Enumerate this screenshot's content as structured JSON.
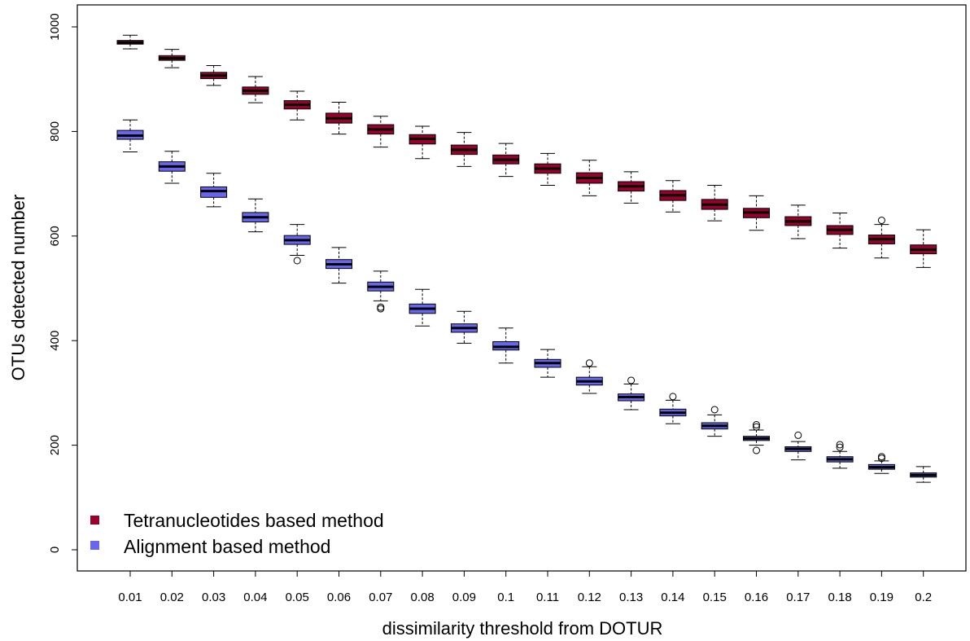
{
  "chart_data": {
    "type": "boxplot",
    "xlabel": "dissimilarity threshold from DOTUR",
    "ylabel": "OTUs detected number",
    "ylim": [
      0,
      1000
    ],
    "yticks": [
      0,
      200,
      400,
      600,
      800,
      1000
    ],
    "categories": [
      "0.01",
      "0.02",
      "0.03",
      "0.04",
      "0.05",
      "0.06",
      "0.07",
      "0.08",
      "0.09",
      "0.1",
      "0.11",
      "0.12",
      "0.13",
      "0.14",
      "0.15",
      "0.16",
      "0.17",
      "0.18",
      "0.19",
      "0.2"
    ],
    "legend_position": "bottom-left",
    "grid": false,
    "series": [
      {
        "name": "Tetranucleotides based method",
        "color": "#99002e",
        "boxes": [
          {
            "min": 958,
            "q1": 967,
            "median": 970,
            "q3": 974,
            "max": 984,
            "outliers": []
          },
          {
            "min": 922,
            "q1": 936,
            "median": 940,
            "q3": 945,
            "max": 957,
            "outliers": []
          },
          {
            "min": 888,
            "q1": 901,
            "median": 907,
            "q3": 913,
            "max": 926,
            "outliers": []
          },
          {
            "min": 855,
            "q1": 871,
            "median": 878,
            "q3": 885,
            "max": 905,
            "outliers": []
          },
          {
            "min": 822,
            "q1": 843,
            "median": 851,
            "q3": 859,
            "max": 877,
            "outliers": []
          },
          {
            "min": 795,
            "q1": 816,
            "median": 825,
            "q3": 835,
            "max": 856,
            "outliers": []
          },
          {
            "min": 770,
            "q1": 795,
            "median": 804,
            "q3": 813,
            "max": 829,
            "outliers": []
          },
          {
            "min": 748,
            "q1": 776,
            "median": 786,
            "q3": 794,
            "max": 810,
            "outliers": []
          },
          {
            "min": 733,
            "q1": 756,
            "median": 765,
            "q3": 774,
            "max": 798,
            "outliers": []
          },
          {
            "min": 714,
            "q1": 738,
            "median": 746,
            "q3": 755,
            "max": 777,
            "outliers": []
          },
          {
            "min": 697,
            "q1": 720,
            "median": 729,
            "q3": 738,
            "max": 758,
            "outliers": []
          },
          {
            "min": 677,
            "q1": 701,
            "median": 711,
            "q3": 721,
            "max": 745,
            "outliers": []
          },
          {
            "min": 663,
            "q1": 686,
            "median": 695,
            "q3": 704,
            "max": 723,
            "outliers": []
          },
          {
            "min": 646,
            "q1": 668,
            "median": 678,
            "q3": 687,
            "max": 706,
            "outliers": []
          },
          {
            "min": 629,
            "q1": 651,
            "median": 660,
            "q3": 670,
            "max": 697,
            "outliers": []
          },
          {
            "min": 611,
            "q1": 635,
            "median": 645,
            "q3": 653,
            "max": 677,
            "outliers": []
          },
          {
            "min": 595,
            "q1": 620,
            "median": 628,
            "q3": 637,
            "max": 659,
            "outliers": []
          },
          {
            "min": 577,
            "q1": 603,
            "median": 612,
            "q3": 620,
            "max": 644,
            "outliers": []
          },
          {
            "min": 558,
            "q1": 585,
            "median": 594,
            "q3": 602,
            "max": 622,
            "outliers": [
              630
            ]
          },
          {
            "min": 540,
            "q1": 566,
            "median": 574,
            "q3": 583,
            "max": 612,
            "outliers": []
          }
        ]
      },
      {
        "name": "Alignment based method",
        "color": "#6666ee",
        "boxes": [
          {
            "min": 761,
            "q1": 785,
            "median": 792,
            "q3": 802,
            "max": 822,
            "outliers": []
          },
          {
            "min": 701,
            "q1": 724,
            "median": 733,
            "q3": 742,
            "max": 762,
            "outliers": []
          },
          {
            "min": 656,
            "q1": 674,
            "median": 686,
            "q3": 694,
            "max": 720,
            "outliers": []
          },
          {
            "min": 608,
            "q1": 627,
            "median": 636,
            "q3": 645,
            "max": 671,
            "outliers": []
          },
          {
            "min": 563,
            "q1": 584,
            "median": 592,
            "q3": 601,
            "max": 622,
            "outliers": [
              553
            ]
          },
          {
            "min": 510,
            "q1": 538,
            "median": 546,
            "q3": 555,
            "max": 578,
            "outliers": []
          },
          {
            "min": 476,
            "q1": 495,
            "median": 503,
            "q3": 512,
            "max": 533,
            "outliers": [
              461,
              464
            ]
          },
          {
            "min": 428,
            "q1": 452,
            "median": 461,
            "q3": 470,
            "max": 498,
            "outliers": []
          },
          {
            "min": 395,
            "q1": 416,
            "median": 424,
            "q3": 432,
            "max": 456,
            "outliers": []
          },
          {
            "min": 357,
            "q1": 382,
            "median": 388,
            "q3": 398,
            "max": 424,
            "outliers": []
          },
          {
            "min": 330,
            "q1": 349,
            "median": 357,
            "q3": 364,
            "max": 383,
            "outliers": []
          },
          {
            "min": 299,
            "q1": 315,
            "median": 322,
            "q3": 330,
            "max": 350,
            "outliers": [
              357
            ]
          },
          {
            "min": 268,
            "q1": 285,
            "median": 292,
            "q3": 298,
            "max": 317,
            "outliers": [
              324
            ]
          },
          {
            "min": 241,
            "q1": 256,
            "median": 262,
            "q3": 269,
            "max": 286,
            "outliers": [
              293
            ]
          },
          {
            "min": 217,
            "q1": 231,
            "median": 237,
            "q3": 243,
            "max": 258,
            "outliers": [
              268
            ]
          },
          {
            "min": 200,
            "q1": 209,
            "median": 213,
            "q3": 217,
            "max": 229,
            "outliers": [
              190,
              235,
              239
            ]
          },
          {
            "min": 172,
            "q1": 188,
            "median": 193,
            "q3": 197,
            "max": 207,
            "outliers": [
              219
            ]
          },
          {
            "min": 156,
            "q1": 168,
            "median": 173,
            "q3": 178,
            "max": 188,
            "outliers": [
              196,
              201
            ]
          },
          {
            "min": 146,
            "q1": 154,
            "median": 158,
            "q3": 163,
            "max": 170,
            "outliers": [
              175,
              178
            ]
          },
          {
            "min": 129,
            "q1": 139,
            "median": 143,
            "q3": 147,
            "max": 159,
            "outliers": []
          }
        ]
      }
    ]
  }
}
